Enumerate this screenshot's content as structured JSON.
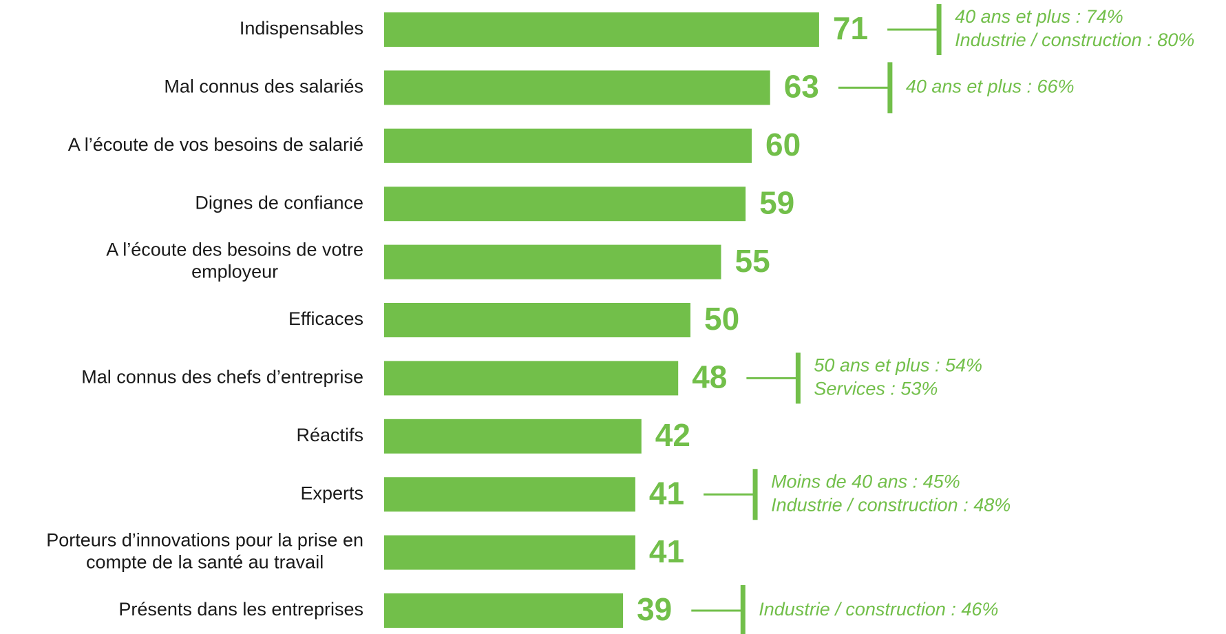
{
  "colors": {
    "bar": "#72bf4a",
    "text": "#1a1a1a"
  },
  "chart_data": {
    "type": "bar",
    "orientation": "horizontal",
    "categories": [
      [
        "Indispensables"
      ],
      [
        "Mal connus des salariés"
      ],
      [
        "A l’écoute de vos besoins de salarié"
      ],
      [
        "Dignes de confiance"
      ],
      [
        "A l’écoute des besoins de votre",
        "employeur"
      ],
      [
        "Efficaces"
      ],
      [
        "Mal connus des chefs d’entreprise"
      ],
      [
        "Réactifs"
      ],
      [
        "Experts"
      ],
      [
        "Porteurs d’innovations pour la prise en",
        "compte de la santé au travail"
      ],
      [
        "Présents dans les entreprises"
      ]
    ],
    "values": [
      71,
      63,
      60,
      59,
      55,
      50,
      48,
      42,
      41,
      41,
      39
    ],
    "xlim": [
      0,
      80
    ],
    "annotations": [
      {
        "index": 0,
        "lines": [
          "40 ans et plus : 74%",
          "Industrie / construction : 80%"
        ]
      },
      {
        "index": 1,
        "lines": [
          "40 ans  et plus : 66%"
        ]
      },
      {
        "index": 6,
        "lines": [
          "50 ans et plus : 54%",
          "Services : 53%"
        ]
      },
      {
        "index": 8,
        "lines": [
          "Moins de 40 ans : 45%",
          "Industrie / construction : 48%"
        ]
      },
      {
        "index": 10,
        "lines": [
          "Industrie / construction : 46%"
        ]
      }
    ]
  }
}
